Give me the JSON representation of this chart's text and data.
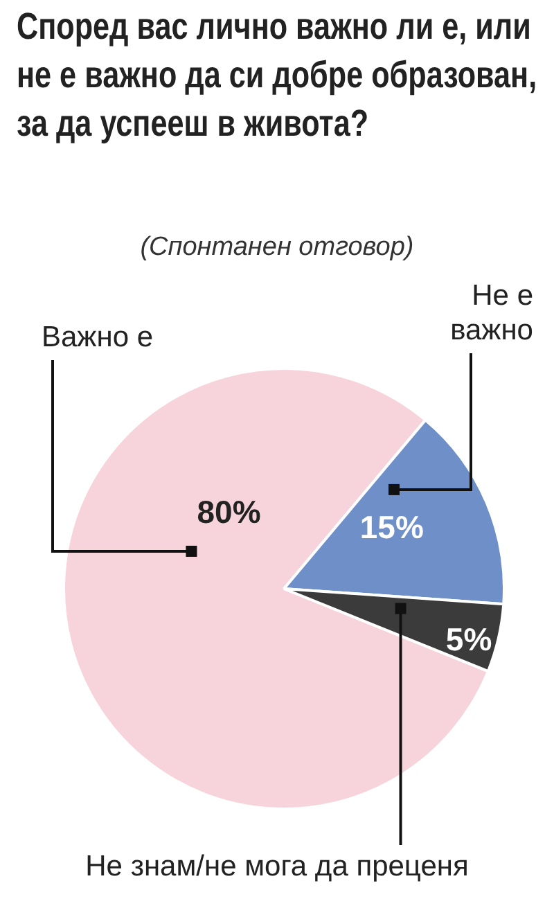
{
  "chart_data": {
    "type": "pie",
    "title": "Според вас лично важно ли е, или не е важно да си добре образован, за да успееш в живота?",
    "subtitle": "(Спонтанен отговор)",
    "categories": [
      "Важно е",
      "Не е важно",
      "Не знам/не мога да преценя"
    ],
    "values": [
      80,
      15,
      5
    ],
    "colors": [
      "#f7d4dc",
      "#6e8fc8",
      "#3b3b3b"
    ],
    "value_labels": [
      "80%",
      "15%",
      "5%"
    ],
    "legend": false
  }
}
